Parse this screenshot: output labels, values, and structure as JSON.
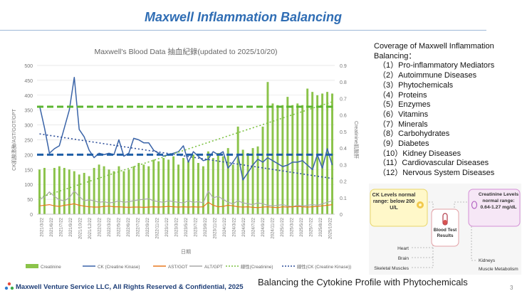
{
  "slide": {
    "title": "Maxwell Inflammation Balancing",
    "subtitle": "Balancing the Cytokine Profile with Phytochemicals",
    "footer": "Maxwell Venture Service LLC, All Rights Reserved & Confidential, 2025",
    "page_number": "3"
  },
  "coverage": {
    "heading": "Coverage of Maxwell Inflammation Balancing：",
    "items": [
      "（1）Pro-inflammatory Mediators",
      "（2）Autoimmune Diseases",
      "（3）Phytochemicals",
      "（4）Proteins",
      "（5）Enzymes",
      "（6）Vitamins",
      "（7）Minerals",
      "（8）Carbohydrates",
      "（9）Diabetes",
      "（10）Kidney Diseases",
      "（11）Cardiovascular Diseases",
      "（12）Nervous System Diseases"
    ]
  },
  "diagram": {
    "ck_box": "CK Levels normal range: below 200 U/L",
    "test_box": "Blood Test Results",
    "creat_box": "Creatinine Levels normal range: 0.64-1.27 mg/dL",
    "labels_left": [
      "Heart",
      "Brain",
      "Skeletal Muscles"
    ],
    "labels_right": [
      "Kidneys",
      "Muscle Metabolism"
    ]
  },
  "colors": {
    "creatinine": "#8bc34a",
    "ck": "#3a64a8",
    "ast": "#e8791f",
    "alt": "#a9a9a9",
    "trend_creat": "#7cc142",
    "trend_ck": "#2e4f9a",
    "ref_green": "#5cb531",
    "ref_blue": "#1f5fa8"
  },
  "chart_data": {
    "type": "bar",
    "title": "Maxwell's Blood Data 抽血紀錄(updated to 2025/10/20)",
    "xlabel": "日期",
    "ylabel_left": "CK肌酸激酶/AST/GOT/GPT",
    "ylabel_right": "Creatinine肌酸酐",
    "ylim_left": [
      0,
      500
    ],
    "ylim_right": [
      0,
      0.9
    ],
    "yticks_left": [
      0,
      50,
      100,
      150,
      200,
      250,
      300,
      350,
      400,
      450,
      500
    ],
    "yticks_right": [
      0,
      0.1,
      0.2,
      0.3,
      0.4,
      0.5,
      0.6,
      0.7,
      0.8,
      0.9
    ],
    "x_tick_labels": [
      "2021/3/22",
      "2021/6/22",
      "2021/7/22",
      "2021/9/22",
      "2021/10/22",
      "2021/12/22",
      "2022/2/22",
      "2022/3/22",
      "2022/5/22",
      "2022/6/22",
      "2022/7/22",
      "2022/9/22",
      "2022/11/22",
      "2023/1/22",
      "2023/3/22",
      "2023/5/22",
      "2023/7/22",
      "2023/9/22",
      "2023/11/22",
      "2024/1/22",
      "2024/3/22",
      "2024/5/22",
      "2024/7/22",
      "2024/9/22",
      "2024/11/22",
      "2025/1/22",
      "2025/3/22",
      "2025/5/22",
      "2025/7/22",
      "2025/8/22",
      "2025/10/22"
    ],
    "legend": [
      "Creatinine",
      "CK (Creatine Kinase)",
      "AST/GOT",
      "ALT/GPT",
      "線性(Creatinine)",
      "線性(CK (Creatine Kinase))"
    ],
    "series": [
      {
        "name": "Creatinine",
        "axis": "right",
        "kind": "bar",
        "values": [
          0.27,
          0.28,
          0,
          0.28,
          0.29,
          0.28,
          0.27,
          0.26,
          0.24,
          0.25,
          0.23,
          0.28,
          0.3,
          0.29,
          0.27,
          0.26,
          0.29,
          0.26,
          0.27,
          0.29,
          0.31,
          0.3,
          0.29,
          0.33,
          0.32,
          0.34,
          0.33,
          0.35,
          0.3,
          0.34,
          0.32,
          0.36,
          0.31,
          0.29,
          0.38,
          0.34,
          0.37,
          0.35,
          0.4,
          0.3,
          0.53,
          0.39,
          0.37,
          0.4,
          0.41,
          0.53,
          0.8,
          0.67,
          0.66,
          0.66,
          0.71,
          0.66,
          0.67,
          0.66,
          0.76,
          0.74,
          0.72,
          0.73,
          0.74,
          0.73
        ]
      },
      {
        "name": "CK (Creatine Kinase)",
        "axis": "left",
        "kind": "line",
        "values": [
          365,
          290,
          205,
          220,
          230,
          290,
          350,
          460,
          285,
          260,
          215,
          190,
          205,
          200,
          205,
          200,
          250,
          195,
          205,
          255,
          250,
          240,
          240,
          215,
          205,
          195,
          200,
          205,
          210,
          230,
          175,
          210,
          195,
          180,
          185,
          210,
          200,
          210,
          155,
          175,
          200,
          115,
          140,
          165,
          185,
          175,
          190,
          180,
          170,
          160,
          165,
          175,
          175,
          180,
          165,
          150,
          200,
          155,
          220,
          165
        ]
      },
      {
        "name": "AST/GOT",
        "axis": "left",
        "kind": "line",
        "values": [
          28,
          30,
          32,
          28,
          26,
          30,
          32,
          35,
          30,
          27,
          25,
          24,
          24,
          26,
          27,
          25,
          25,
          24,
          23,
          24,
          24,
          23,
          24,
          25,
          24,
          25,
          26,
          25,
          24,
          25,
          24,
          25,
          24,
          25,
          40,
          30,
          25,
          26,
          30,
          28,
          25,
          24,
          25,
          23,
          22,
          24,
          25,
          23,
          22,
          25,
          24,
          25,
          26,
          25,
          24,
          25,
          26,
          28,
          30,
          32
        ]
      },
      {
        "name": "ALT/GPT",
        "axis": "left",
        "kind": "line",
        "values": [
          50,
          58,
          75,
          60,
          48,
          45,
          55,
          78,
          60,
          45,
          48,
          45,
          40,
          42,
          38,
          40,
          45,
          40,
          42,
          45,
          48,
          50,
          52,
          45,
          42,
          40,
          45,
          42,
          40,
          38,
          45,
          40,
          42,
          38,
          78,
          55,
          60,
          50,
          40,
          35,
          45,
          38,
          35,
          32,
          38,
          35,
          30,
          28,
          30,
          32,
          28,
          25,
          30,
          28,
          30,
          32,
          30,
          35,
          40,
          45
        ]
      },
      {
        "name": "線性(Creatinine)",
        "axis": "right",
        "kind": "trend",
        "values": [
          0.1,
          0.68
        ]
      },
      {
        "name": "線性(CK (Creatine Kinase))",
        "axis": "left",
        "kind": "trend",
        "values": [
          270,
          120
        ]
      },
      {
        "name": "Creatinine reference",
        "axis": "right",
        "kind": "hline",
        "values": [
          0.65
        ]
      },
      {
        "name": "CK reference",
        "axis": "left",
        "kind": "hline",
        "values": [
          200
        ]
      }
    ]
  }
}
